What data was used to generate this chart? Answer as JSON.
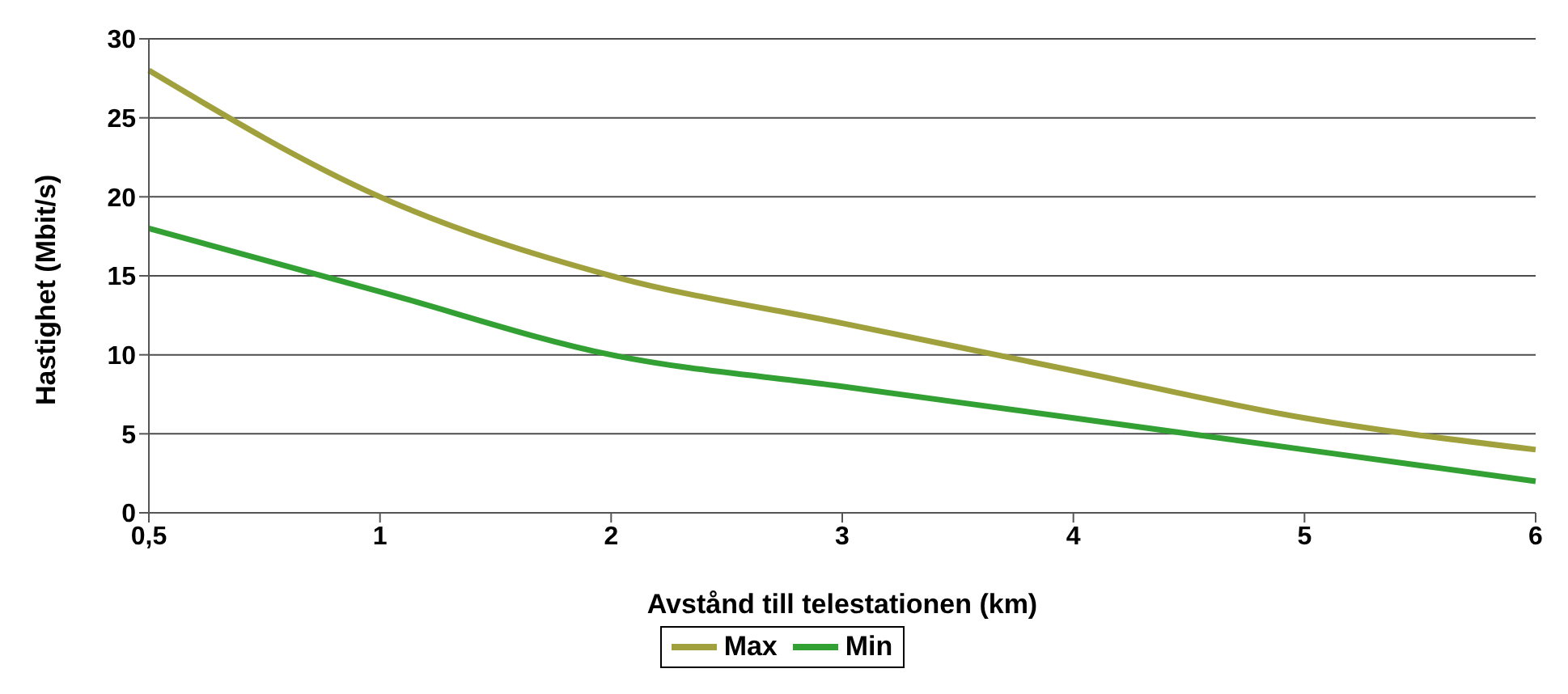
{
  "chart_data": {
    "type": "line",
    "xlabel": "Avstånd till telestationen (km)",
    "ylabel": "Hastighet (Mbit/s)",
    "categories": [
      "0,5",
      "1",
      "2",
      "3",
      "4",
      "5",
      "6"
    ],
    "series": [
      {
        "name": "Max",
        "color": "#a0a03c",
        "values": [
          28,
          20,
          15,
          12,
          9,
          6,
          4
        ]
      },
      {
        "name": "Min",
        "color": "#33a033",
        "values": [
          18,
          14,
          10,
          8,
          6,
          4,
          2
        ]
      }
    ],
    "ylim": [
      0,
      30
    ],
    "yticks": [
      0,
      5,
      10,
      15,
      20,
      25,
      30
    ],
    "grid": "y",
    "legend": "bottom",
    "marker": "none",
    "line_style": "solid"
  }
}
